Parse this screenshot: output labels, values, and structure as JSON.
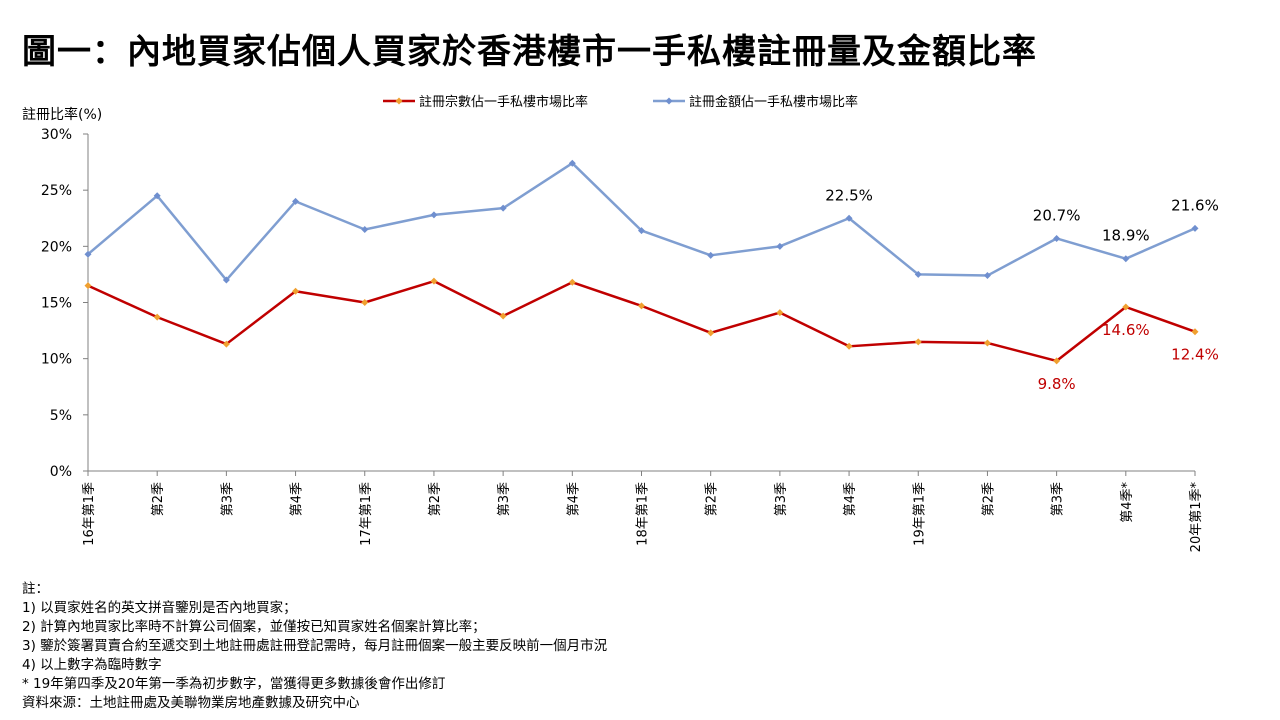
{
  "title": "圖一：內地買家佔個人買家於香港樓市一手私樓註冊量及金額比率",
  "chart_data": {
    "type": "line",
    "ylabel": "註冊比率(%)",
    "ylim": [
      0,
      30
    ],
    "yticks": [
      "0%",
      "5%",
      "10%",
      "15%",
      "20%",
      "25%",
      "30%"
    ],
    "categories": [
      "16年第1季",
      "第2季",
      "第3季",
      "第4季",
      "17年第1季",
      "第2季",
      "第3季",
      "第4季",
      "18年第1季",
      "第2季",
      "第3季",
      "第4季",
      "19年第1季",
      "第2季",
      "第3季",
      "第4季*",
      "20年第1季*"
    ],
    "legend_position": "top",
    "grid": false,
    "series": [
      {
        "name": "註冊宗數佔一手私樓市場比率",
        "color": "#c00000",
        "values": [
          16.5,
          13.7,
          11.3,
          16.0,
          15.0,
          16.9,
          13.8,
          16.8,
          14.7,
          12.3,
          14.1,
          11.1,
          11.5,
          11.4,
          9.8,
          14.6,
          12.4
        ],
        "data_labels": [
          {
            "index": 14,
            "text": "9.8%"
          },
          {
            "index": 15,
            "text": "14.6%"
          },
          {
            "index": 16,
            "text": "12.4%"
          }
        ]
      },
      {
        "name": "註冊金額佔一手私樓市場比率",
        "color": "#7f9ed1",
        "values": [
          19.3,
          24.5,
          17.0,
          24.0,
          21.5,
          22.8,
          23.4,
          27.4,
          21.4,
          19.2,
          20.0,
          22.5,
          17.5,
          17.4,
          20.7,
          18.9,
          21.6
        ],
        "data_labels": [
          {
            "index": 11,
            "text": "22.5%"
          },
          {
            "index": 14,
            "text": "20.7%"
          },
          {
            "index": 15,
            "text": "18.9%"
          },
          {
            "index": 16,
            "text": "21.6%"
          }
        ]
      }
    ]
  },
  "notes": [
    "註：",
    "1) 以買家姓名的英文拼音鑒別是否內地買家；",
    "2) 計算內地買家比率時不計算公司個案，並僅按已知買家姓名個案計算比率；",
    "3) 鑒於簽署買賣合約至遞交到土地註冊處註冊登記需時，每月註冊個案一般主要反映前一個月市況",
    "4) 以上數字為臨時數字",
    "* 19年第四季及20年第一季為初步數字，當獲得更多數據後會作出修訂",
    "資料來源：土地註冊處及美聯物業房地產數據及研究中心"
  ]
}
